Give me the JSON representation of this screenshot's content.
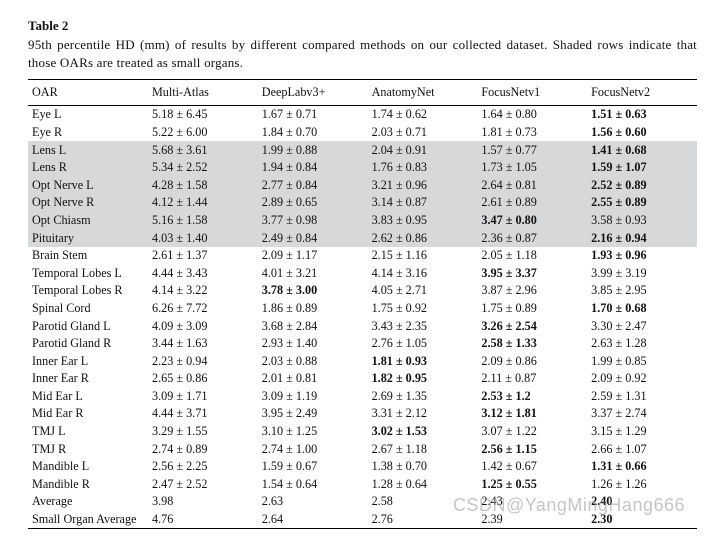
{
  "table_label": "Table 2",
  "caption": "95th percentile HD (mm) of results by different compared methods on our collected dataset. Shaded rows indicate that those OARs are treated as small organs.",
  "columns": [
    "OAR",
    "Multi-Atlas",
    "DeepLabv3+",
    "AnatomyNet",
    "FocusNetv1",
    "FocusNetv2"
  ],
  "bold_column": 5,
  "rows": [
    {
      "oar": "Eye L",
      "shaded": false,
      "cells": [
        {
          "t": "5.18 ± 6.45"
        },
        {
          "t": "1.67 ± 0.71"
        },
        {
          "t": "1.74 ± 0.62"
        },
        {
          "t": "1.64 ± 0.80"
        },
        {
          "t": "1.51  ±  0.63",
          "b": true
        }
      ]
    },
    {
      "oar": "Eye R",
      "shaded": false,
      "cells": [
        {
          "t": "5.22 ± 6.00"
        },
        {
          "t": "1.84 ± 0.70"
        },
        {
          "t": "2.03 ± 0.71"
        },
        {
          "t": "1.81 ± 0.73"
        },
        {
          "t": "1.56  ±  0.60",
          "b": true
        }
      ]
    },
    {
      "oar": "Lens L",
      "shaded": true,
      "cells": [
        {
          "t": "5.68 ± 3.61"
        },
        {
          "t": "1.99 ± 0.88"
        },
        {
          "t": "2.04 ± 0.91"
        },
        {
          "t": "1.57 ± 0.77"
        },
        {
          "t": "1.41  ±  0.68",
          "b": true
        }
      ]
    },
    {
      "oar": "Lens R",
      "shaded": true,
      "cells": [
        {
          "t": "5.34 ± 2.52"
        },
        {
          "t": "1.94 ± 0.84"
        },
        {
          "t": "1.76 ± 0.83"
        },
        {
          "t": "1.73 ± 1.05"
        },
        {
          "t": "1.59  ±  1.07",
          "b": true
        }
      ]
    },
    {
      "oar": "Opt Nerve L",
      "shaded": true,
      "cells": [
        {
          "t": "4.28 ± 1.58"
        },
        {
          "t": "2.77 ± 0.84"
        },
        {
          "t": "3.21 ± 0.96"
        },
        {
          "t": "2.64 ± 0.81"
        },
        {
          "t": "2.52  ±  0.89",
          "b": true
        }
      ]
    },
    {
      "oar": "Opt Nerve R",
      "shaded": true,
      "cells": [
        {
          "t": "4.12 ± 1.44"
        },
        {
          "t": "2.89 ± 0.65"
        },
        {
          "t": "3.14 ± 0.87"
        },
        {
          "t": "2.61 ± 0.89"
        },
        {
          "t": "2.55  ±  0.89",
          "b": true
        }
      ]
    },
    {
      "oar": "Opt Chiasm",
      "shaded": true,
      "cells": [
        {
          "t": "5.16 ± 1.58"
        },
        {
          "t": "3.77 ± 0.98"
        },
        {
          "t": "3.83 ± 0.95"
        },
        {
          "t": "3.47  ±  0.80",
          "b": true
        },
        {
          "t": "3.58 ± 0.93"
        }
      ]
    },
    {
      "oar": "Pituitary",
      "shaded": true,
      "cells": [
        {
          "t": "4.03 ± 1.40"
        },
        {
          "t": "2.49 ± 0.84"
        },
        {
          "t": "2.62 ± 0.86"
        },
        {
          "t": "2.36 ± 0.87"
        },
        {
          "t": "2.16  ±  0.94",
          "b": true
        }
      ]
    },
    {
      "oar": "Brain Stem",
      "shaded": false,
      "cells": [
        {
          "t": "2.61 ± 1.37"
        },
        {
          "t": "2.09 ± 1.17"
        },
        {
          "t": "2.15 ± 1.16"
        },
        {
          "t": "2.05 ± 1.18"
        },
        {
          "t": "1.93  ±  0.96",
          "b": true
        }
      ]
    },
    {
      "oar": "Temporal Lobes L",
      "shaded": false,
      "cells": [
        {
          "t": "4.44 ± 3.43"
        },
        {
          "t": "4.01 ± 3.21"
        },
        {
          "t": "4.14 ± 3.16"
        },
        {
          "t": "3.95  ±  3.37",
          "b": true
        },
        {
          "t": "3.99 ± 3.19"
        }
      ]
    },
    {
      "oar": "Temporal Lobes R",
      "shaded": false,
      "cells": [
        {
          "t": "4.14 ± 3.22"
        },
        {
          "t": "3.78  ±  3.00",
          "b": true
        },
        {
          "t": "4.05 ± 2.71"
        },
        {
          "t": "3.87 ± 2.96"
        },
        {
          "t": "3.85 ± 2.95"
        }
      ]
    },
    {
      "oar": "Spinal Cord",
      "shaded": false,
      "cells": [
        {
          "t": "6.26 ± 7.72"
        },
        {
          "t": "1.86 ± 0.89"
        },
        {
          "t": "1.75 ± 0.92"
        },
        {
          "t": "1.75 ± 0.89"
        },
        {
          "t": "1.70  ±  0.68",
          "b": true
        }
      ]
    },
    {
      "oar": "Parotid Gland L",
      "shaded": false,
      "cells": [
        {
          "t": "4.09 ± 3.09"
        },
        {
          "t": "3.68 ± 2.84"
        },
        {
          "t": "3.43 ± 2.35"
        },
        {
          "t": "3.26  ±  2.54",
          "b": true
        },
        {
          "t": "3.30 ± 2.47"
        }
      ]
    },
    {
      "oar": "Parotid Gland R",
      "shaded": false,
      "cells": [
        {
          "t": "3.44 ± 1.63"
        },
        {
          "t": "2.93 ± 1.40"
        },
        {
          "t": "2.76 ± 1.05"
        },
        {
          "t": "2.58  ±  1.33",
          "b": true
        },
        {
          "t": "2.63 ± 1.28"
        }
      ]
    },
    {
      "oar": "Inner Ear L",
      "shaded": false,
      "cells": [
        {
          "t": "2.23 ± 0.94"
        },
        {
          "t": "2.03 ± 0.88"
        },
        {
          "t": "1.81  ±  0.93",
          "b": true
        },
        {
          "t": "2.09 ± 0.86"
        },
        {
          "t": "1.99 ± 0.85"
        }
      ]
    },
    {
      "oar": "Inner Ear R",
      "shaded": false,
      "cells": [
        {
          "t": "2.65 ± 0.86"
        },
        {
          "t": "2.01 ± 0.81"
        },
        {
          "t": "1.82  ±  0.95",
          "b": true
        },
        {
          "t": "2.11 ± 0.87"
        },
        {
          "t": "2.09 ± 0.92"
        }
      ]
    },
    {
      "oar": "Mid Ear L",
      "shaded": false,
      "cells": [
        {
          "t": "3.09 ± 1.71"
        },
        {
          "t": "3.09 ± 1.19"
        },
        {
          "t": "2.69 ± 1.35"
        },
        {
          "t": "2.53  ±  1.2",
          "b": true
        },
        {
          "t": "2.59 ± 1.31"
        }
      ]
    },
    {
      "oar": "Mid Ear R",
      "shaded": false,
      "cells": [
        {
          "t": "4.44 ± 3.71"
        },
        {
          "t": "3.95 ± 2.49"
        },
        {
          "t": "3.31 ± 2.12"
        },
        {
          "t": "3.12  ±  1.81",
          "b": true
        },
        {
          "t": "3.37 ± 2.74"
        }
      ]
    },
    {
      "oar": "TMJ L",
      "shaded": false,
      "cells": [
        {
          "t": "3.29 ± 1.55"
        },
        {
          "t": "3.10 ± 1.25"
        },
        {
          "t": "3.02 ± 1.53",
          "b": true
        },
        {
          "t": "3.07  ±  1.22"
        },
        {
          "t": "3.15 ± 1.29"
        }
      ]
    },
    {
      "oar": "TMJ R",
      "shaded": false,
      "cells": [
        {
          "t": "2.74 ± 0.89"
        },
        {
          "t": "2.74 ± 1.00"
        },
        {
          "t": "2.67 ± 1.18"
        },
        {
          "t": "2.56  ±  1.15",
          "b": true
        },
        {
          "t": "2.66 ± 1.07"
        }
      ]
    },
    {
      "oar": "Mandible L",
      "shaded": false,
      "cells": [
        {
          "t": "2.56 ± 2.25"
        },
        {
          "t": "1.59 ± 0.67"
        },
        {
          "t": "1.38 ± 0.70"
        },
        {
          "t": "1.42 ± 0.67"
        },
        {
          "t": "1.31  ±  0.66",
          "b": true
        }
      ]
    },
    {
      "oar": "Mandible R",
      "shaded": false,
      "cells": [
        {
          "t": "2.47 ± 2.52"
        },
        {
          "t": "1.54 ± 0.64"
        },
        {
          "t": "1.28 ± 0.64"
        },
        {
          "t": "1.25  ±  0.55",
          "b": true
        },
        {
          "t": "1.26 ± 1.26"
        }
      ]
    },
    {
      "oar": "Average",
      "shaded": false,
      "cells": [
        {
          "t": "3.98"
        },
        {
          "t": "2.63"
        },
        {
          "t": "2.58"
        },
        {
          "t": "2.43"
        },
        {
          "t": "2.40",
          "b": true
        }
      ]
    },
    {
      "oar": "Small Organ Average",
      "shaded": false,
      "cells": [
        {
          "t": "4.76"
        },
        {
          "t": "2.64"
        },
        {
          "t": "2.76"
        },
        {
          "t": "2.39"
        },
        {
          "t": "2.30",
          "b": true
        }
      ]
    }
  ],
  "watermark": "CSDN@YangMingHang666"
}
